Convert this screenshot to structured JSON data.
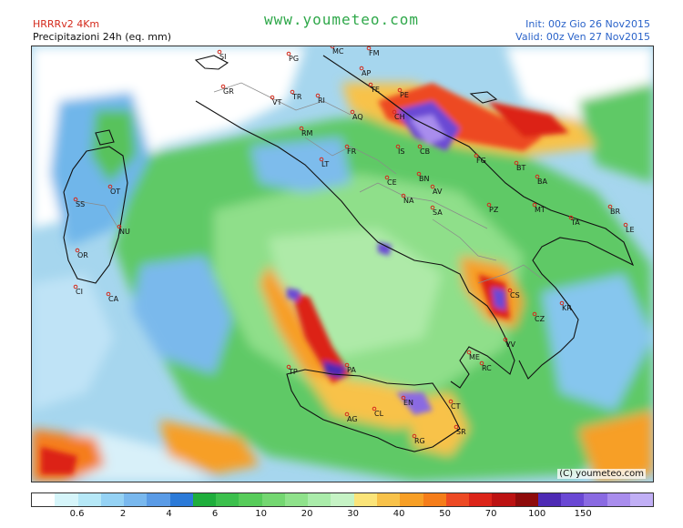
{
  "header": {
    "model": "HRRRv2  4Km",
    "product": "Precipitazioni 24h (eq. mm)",
    "site": "www.youmeteo.com",
    "init": "Init: 00z Gio   26 Nov2015",
    "valid": "Valid: 00z Ven   27 Nov2015"
  },
  "copyright": "(C) youmeteo.com",
  "colorbar": {
    "colors": [
      "#ffffff",
      "#d6f5fa",
      "#b6e8f7",
      "#95d2f4",
      "#79b8ee",
      "#5a9be6",
      "#2c7ad8",
      "#1fae3c",
      "#3cc04d",
      "#57cc5a",
      "#74d771",
      "#8fe28b",
      "#aaecaa",
      "#c6f3c5",
      "#fbe479",
      "#f8c24a",
      "#f79f26",
      "#f57d1a",
      "#ed4a24",
      "#dc2419",
      "#bc1212",
      "#8e0b0b",
      "#4e2ab4",
      "#6a48d4",
      "#8a6ae2",
      "#a98ded",
      "#c1aff5"
    ],
    "labels": [
      "0.6",
      "2",
      "4",
      "6",
      "10",
      "20",
      "30",
      "40",
      "50",
      "70",
      "100",
      "150"
    ]
  },
  "places": [
    {
      "code": "SI"
    },
    {
      "code": "GR"
    },
    {
      "code": "PG"
    },
    {
      "code": "VT"
    },
    {
      "code": "TR"
    },
    {
      "code": "RI"
    },
    {
      "code": "RM"
    },
    {
      "code": "MC"
    },
    {
      "code": "FM"
    },
    {
      "code": "AP"
    },
    {
      "code": "TE"
    },
    {
      "code": "PE"
    },
    {
      "code": "CH"
    },
    {
      "code": "AQ"
    },
    {
      "code": "IS"
    },
    {
      "code": "CB"
    },
    {
      "code": "FG"
    },
    {
      "code": "BT"
    },
    {
      "code": "BA"
    },
    {
      "code": "FR"
    },
    {
      "code": "LT"
    },
    {
      "code": "CE"
    },
    {
      "code": "BN"
    },
    {
      "code": "AV"
    },
    {
      "code": "NA"
    },
    {
      "code": "SA"
    },
    {
      "code": "PZ"
    },
    {
      "code": "MT"
    },
    {
      "code": "TA"
    },
    {
      "code": "BR"
    },
    {
      "code": "LE"
    },
    {
      "code": "OT"
    },
    {
      "code": "SS"
    },
    {
      "code": "NU"
    },
    {
      "code": "OR"
    },
    {
      "code": "CI"
    },
    {
      "code": "CA"
    },
    {
      "code": "CS"
    },
    {
      "code": "KR"
    },
    {
      "code": "CZ"
    },
    {
      "code": "VV"
    },
    {
      "code": "RC"
    },
    {
      "code": "ME"
    },
    {
      "code": "TP"
    },
    {
      "code": "PA"
    },
    {
      "code": "EN"
    },
    {
      "code": "CT"
    },
    {
      "code": "AG"
    },
    {
      "code": "CL"
    },
    {
      "code": "RG"
    },
    {
      "code": "SR"
    }
  ]
}
